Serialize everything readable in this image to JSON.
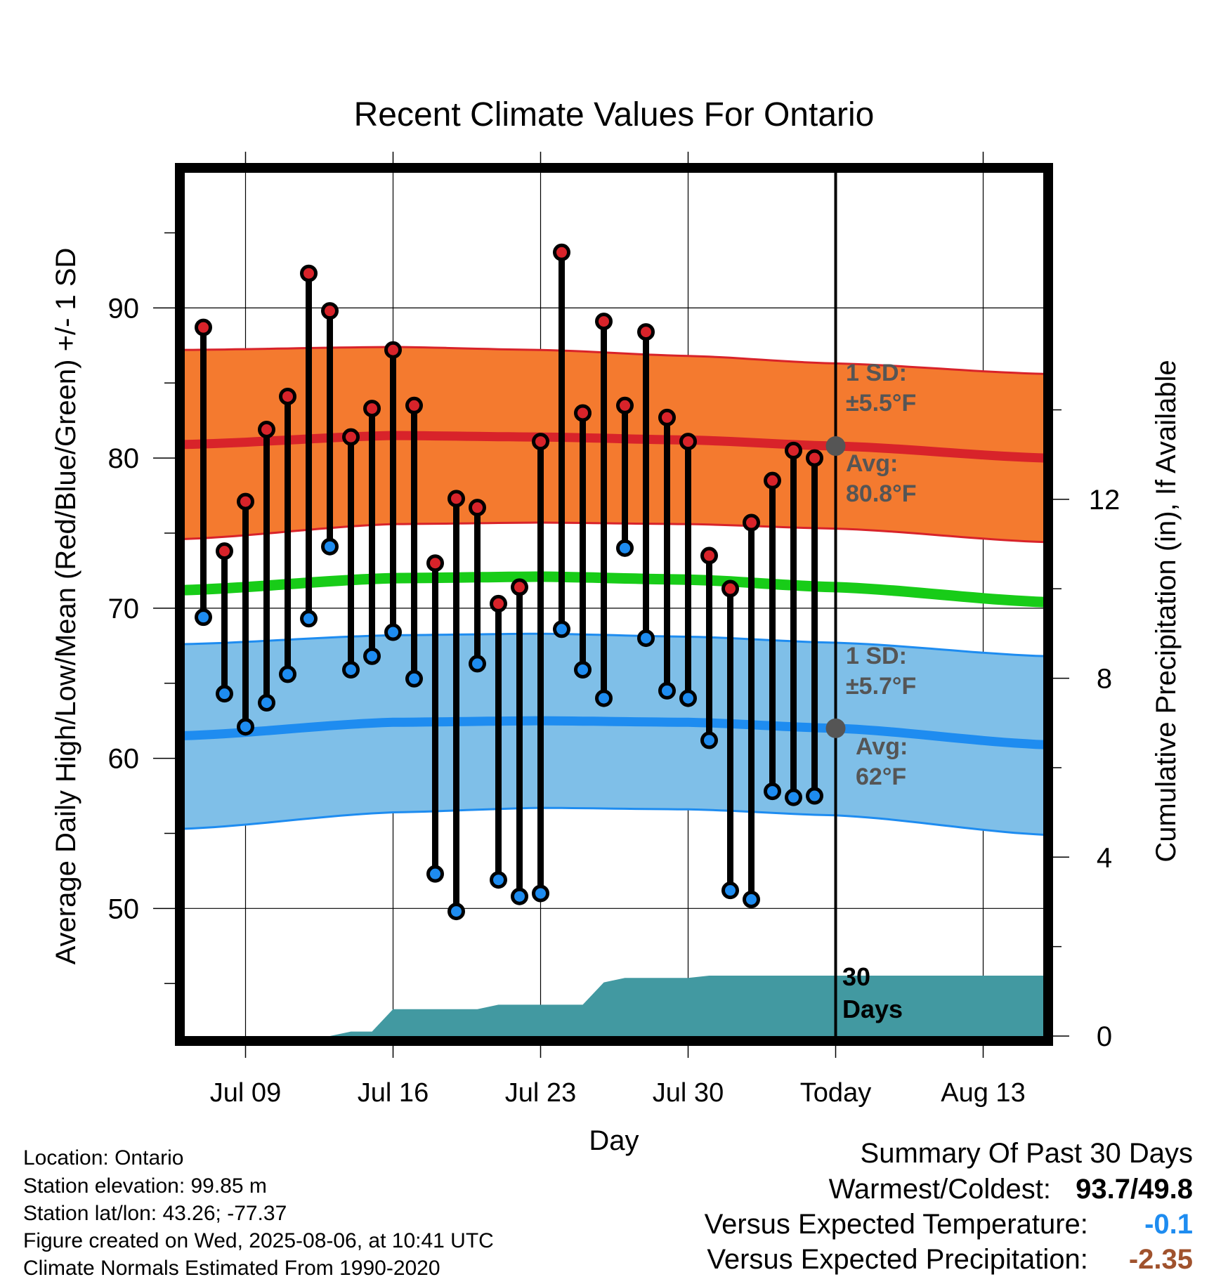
{
  "chart_data": {
    "type": "line",
    "title": "Recent Climate Values For Ontario",
    "xlabel": "Day",
    "ylabel": "Average Daily High/Low/Mean (Red/Blue/Green) +/- 1 SD",
    "y2label": "Cumulative Precipitation (in), If Available",
    "x_tick_labels": [
      "Jul 09",
      "Jul 16",
      "Jul 23",
      "Jul 30",
      "Today",
      "Aug 13"
    ],
    "y_ticks": [
      50,
      60,
      70,
      80,
      90
    ],
    "y2_ticks": [
      0,
      4,
      8,
      12
    ],
    "ylim": [
      41.5,
      99
    ],
    "y2lim": [
      0,
      19.3
    ],
    "grid": true,
    "today_label": "30 Days",
    "colors": {
      "high_band": "#F47A2F",
      "high_mean": "#D8232A",
      "low_band": "#7FBFE8",
      "low_mean": "#1E8CF0",
      "mean_line": "#18CC18",
      "precip": "#4299A1",
      "high_dot": "#D8232A",
      "low_dot": "#1E8CF0",
      "annotation": "#555555",
      "versus_temp": "#1E8CF0",
      "versus_precip": "#A0522D"
    },
    "daily": [
      {
        "date": "Jul 07",
        "high": 88.7,
        "low": 69.4
      },
      {
        "date": "Jul 08",
        "high": 73.8,
        "low": 64.3
      },
      {
        "date": "Jul 09",
        "high": 77.1,
        "low": 62.1
      },
      {
        "date": "Jul 10",
        "high": 81.9,
        "low": 63.7
      },
      {
        "date": "Jul 11",
        "high": 84.1,
        "low": 65.6
      },
      {
        "date": "Jul 12",
        "high": 92.3,
        "low": 69.3
      },
      {
        "date": "Jul 13",
        "high": 89.8,
        "low": 74.1
      },
      {
        "date": "Jul 14",
        "high": 81.4,
        "low": 65.9
      },
      {
        "date": "Jul 15",
        "high": 83.3,
        "low": 66.8
      },
      {
        "date": "Jul 16",
        "high": 87.2,
        "low": 68.4
      },
      {
        "date": "Jul 17",
        "high": 83.5,
        "low": 65.3
      },
      {
        "date": "Jul 18",
        "high": 73.0,
        "low": 52.3
      },
      {
        "date": "Jul 19",
        "high": 77.3,
        "low": 49.8
      },
      {
        "date": "Jul 20",
        "high": 76.7,
        "low": 66.3
      },
      {
        "date": "Jul 21",
        "high": 70.3,
        "low": 51.9
      },
      {
        "date": "Jul 22",
        "high": 71.4,
        "low": 50.8
      },
      {
        "date": "Jul 23",
        "high": 81.1,
        "low": 51.0
      },
      {
        "date": "Jul 24",
        "high": 93.7,
        "low": 68.6
      },
      {
        "date": "Jul 25",
        "high": 83.0,
        "low": 65.9
      },
      {
        "date": "Jul 26",
        "high": 89.1,
        "low": 64.0
      },
      {
        "date": "Jul 27",
        "high": 83.5,
        "low": 74.0
      },
      {
        "date": "Jul 28",
        "high": 88.4,
        "low": 68.0
      },
      {
        "date": "Jul 29",
        "high": 82.7,
        "low": 64.5
      },
      {
        "date": "Jul 30",
        "high": 81.1,
        "low": 64.0
      },
      {
        "date": "Jul 31",
        "high": 73.5,
        "low": 61.2
      },
      {
        "date": "Aug 01",
        "high": 71.3,
        "low": 51.2
      },
      {
        "date": "Aug 02",
        "high": 75.7,
        "low": 50.6
      },
      {
        "date": "Aug 03",
        "high": 78.5,
        "low": 57.8
      },
      {
        "date": "Aug 04",
        "high": 80.5,
        "low": 57.4
      },
      {
        "date": "Aug 05",
        "high": 80.0,
        "low": 57.5
      }
    ],
    "normals": {
      "dates": [
        "Jul 06",
        "Jul 16",
        "Jul 23",
        "Jul 30",
        "Aug 06",
        "Aug 16"
      ],
      "high_mean": [
        80.9,
        81.5,
        81.4,
        81.2,
        80.8,
        80.0
      ],
      "high_upper": [
        87.2,
        87.4,
        87.2,
        86.8,
        86.3,
        85.6
      ],
      "high_lower": [
        74.6,
        75.6,
        75.7,
        75.6,
        75.3,
        74.4
      ],
      "mean": [
        71.2,
        72.0,
        72.1,
        71.9,
        71.4,
        70.4
      ],
      "low_mean": [
        61.5,
        62.4,
        62.5,
        62.4,
        62.0,
        60.9
      ],
      "low_upper": [
        67.6,
        68.2,
        68.3,
        68.1,
        67.7,
        66.8
      ],
      "low_lower": [
        55.3,
        56.4,
        56.7,
        56.6,
        56.2,
        54.9
      ]
    },
    "precip_cumulative": {
      "dates": [
        "Jul 06",
        "Jul 13",
        "Jul 14",
        "Jul 15",
        "Jul 16",
        "Jul 20",
        "Jul 21",
        "Jul 25",
        "Jul 26",
        "Jul 27",
        "Jul 30",
        "Jul 31",
        "Aug 16"
      ],
      "values": [
        0.0,
        0.0,
        0.1,
        0.1,
        0.6,
        0.6,
        0.7,
        0.7,
        1.2,
        1.3,
        1.3,
        1.35,
        1.35
      ]
    },
    "annotations": {
      "high_sd": [
        "1 SD:",
        "±5.5°F"
      ],
      "high_avg": [
        "Avg:",
        "80.8°F"
      ],
      "low_sd": [
        "1 SD:",
        "±5.7°F"
      ],
      "low_avg": [
        "Avg:",
        "62°F"
      ]
    },
    "today_markers": {
      "high_avg": 80.8,
      "low_avg": 62.0
    }
  },
  "footer": {
    "location": "Location: Ontario",
    "elevation": "Station elevation: 99.85 m",
    "latlon": "Station lat/lon: 43.26; -77.37",
    "created": "Figure created on Wed, 2025-08-06, at 10:41 UTC",
    "normals": "Climate Normals Estimated From 1990-2020"
  },
  "summary": {
    "title": "Summary Of Past 30 Days",
    "warmest_label": "Warmest/Coldest:",
    "warmest_high": "93.7",
    "warmest_sep": "/",
    "warmest_low": "49.8",
    "temp_label": "Versus Expected Temperature:",
    "temp_value": "-0.1",
    "precip_label": "Versus Expected Precipitation:",
    "precip_value": "-2.35"
  }
}
